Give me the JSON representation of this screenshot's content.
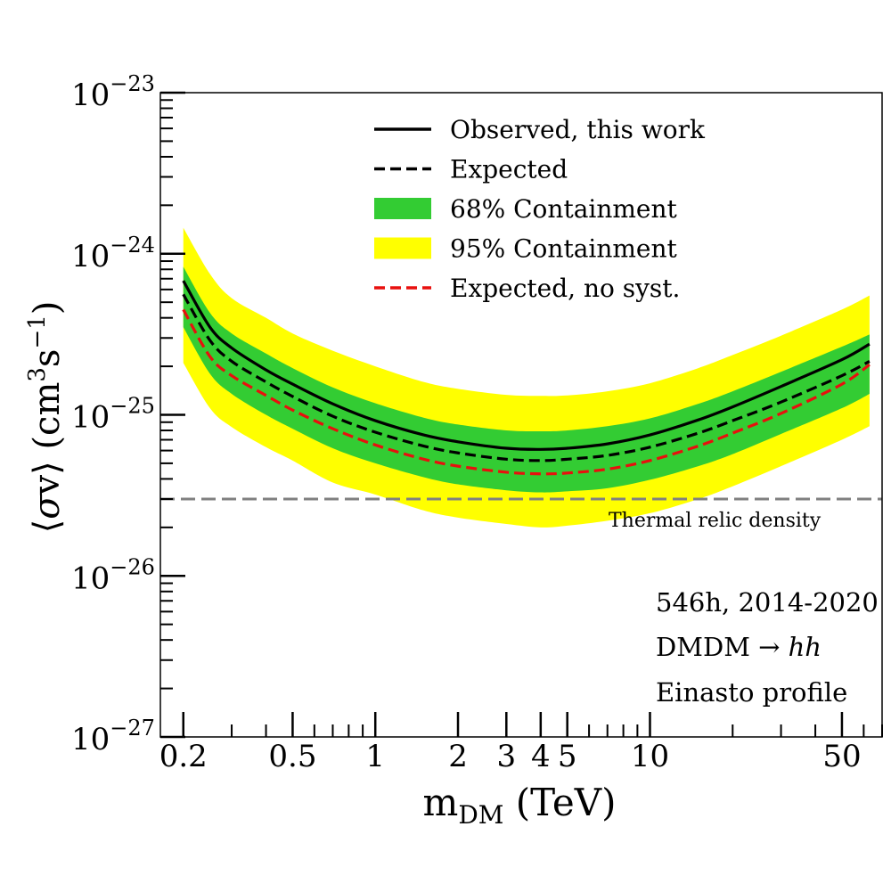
{
  "chart_data": {
    "type": "line",
    "xscale": "log",
    "yscale": "log",
    "xlim": [
      0.165,
      70
    ],
    "ylim": [
      1e-27,
      1e-23
    ],
    "xlabel": {
      "main": "m",
      "sub": "DM",
      "rest": " (TeV)"
    },
    "ylabel": {
      "open": "⟨",
      "sigma": "σ",
      "v": "v",
      "close": "⟩",
      "unit_open": " (cm",
      "exp3": "3",
      "s": "s",
      "expm1": "−1",
      "unit_close": ")"
    },
    "xticks": [
      {
        "value": 0.2,
        "label": "0.2"
      },
      {
        "value": 0.5,
        "label": "0.5"
      },
      {
        "value": 1,
        "label": "1"
      },
      {
        "value": 2,
        "label": "2"
      },
      {
        "value": 3,
        "label": "3"
      },
      {
        "value": 4,
        "label": "4"
      },
      {
        "value": 5,
        "label": "5"
      },
      {
        "value": 10,
        "label": "10"
      },
      {
        "value": 50,
        "label": "50"
      }
    ],
    "yticks": [
      {
        "value": 1e-23,
        "base": "10",
        "exp": "−23"
      },
      {
        "value": 1e-24,
        "base": "10",
        "exp": "−24"
      },
      {
        "value": 1e-25,
        "base": "10",
        "exp": "−25"
      },
      {
        "value": 1e-26,
        "base": "10",
        "exp": "−26"
      },
      {
        "value": 1e-27,
        "base": "10",
        "exp": "−27"
      }
    ],
    "x": [
      0.2,
      0.25,
      0.3,
      0.4,
      0.5,
      0.7,
      1,
      1.5,
      2,
      3,
      4,
      5,
      7,
      10,
      15,
      20,
      30,
      50,
      63
    ],
    "series": [
      {
        "name": "Observed, this work",
        "style": "solid",
        "color": "#000000",
        "values": [
          6.8e-25,
          3.5e-25,
          2.6e-25,
          1.9e-25,
          1.55e-25,
          1.17e-25,
          9.2e-26,
          7.5e-26,
          6.8e-26,
          6.2e-26,
          6.1e-26,
          6.2e-26,
          6.6e-26,
          7.5e-26,
          9.3e-26,
          1.12e-25,
          1.5e-25,
          2.2e-25,
          2.75e-25
        ]
      },
      {
        "name": "Expected",
        "style": "dashed",
        "color": "#000000",
        "values": [
          5.6e-25,
          2.9e-25,
          2.15e-25,
          1.6e-25,
          1.3e-25,
          9.8e-26,
          7.8e-26,
          6.4e-26,
          5.8e-26,
          5.3e-26,
          5.2e-26,
          5.3e-26,
          5.6e-26,
          6.3e-26,
          7.7e-26,
          9.2e-26,
          1.2e-25,
          1.75e-25,
          2.15e-25
        ]
      },
      {
        "name": "Expected, no syst.",
        "style": "dashed",
        "color": "#e8100e",
        "values": [
          4.5e-25,
          2.3e-25,
          1.75e-25,
          1.32e-25,
          1.07e-25,
          8.2e-26,
          6.5e-26,
          5.3e-26,
          4.8e-26,
          4.4e-26,
          4.3e-26,
          4.35e-26,
          4.6e-26,
          5.2e-26,
          6.4e-26,
          7.7e-26,
          1.02e-25,
          1.55e-25,
          2.05e-25
        ]
      }
    ],
    "bands": [
      {
        "name": "95% Containment",
        "color": "#ffff00",
        "lower": [
          2.1e-25,
          1.1e-25,
          8.4e-26,
          6.3e-26,
          5.2e-26,
          3.8e-26,
          3.2e-26,
          2.55e-26,
          2.3e-26,
          2.1e-26,
          2e-26,
          2.05e-26,
          2.2e-26,
          2.45e-26,
          3e-26,
          3.6e-26,
          4.8e-26,
          7e-26,
          8.5e-26
        ],
        "upper": [
          1.45e-24,
          7.5e-25,
          5.3e-25,
          4e-25,
          3.2e-25,
          2.5e-25,
          2e-25,
          1.6e-25,
          1.45e-25,
          1.33e-25,
          1.31e-25,
          1.32e-25,
          1.4e-25,
          1.57e-25,
          1.95e-25,
          2.35e-25,
          3.1e-25,
          4.5e-25,
          5.5e-25
        ]
      },
      {
        "name": "68% Containment",
        "color": "#33cc33",
        "lower": [
          3.5e-25,
          1.8e-25,
          1.35e-25,
          1e-25,
          8.2e-26,
          6.2e-26,
          5e-26,
          4.1e-26,
          3.7e-26,
          3.4e-26,
          3.3e-26,
          3.35e-26,
          3.5e-26,
          3.95e-26,
          4.8e-26,
          5.7e-26,
          7.6e-26,
          1.1e-25,
          1.35e-25
        ]
      },
      {
        "name": "68% Containment upper",
        "color": "#33cc33",
        "upper": [
          8.3e-25,
          4.3e-25,
          3.2e-25,
          2.4e-25,
          1.95e-25,
          1.48e-25,
          1.18e-25,
          9.6e-26,
          8.7e-26,
          8e-26,
          7.9e-26,
          8e-26,
          8.5e-26,
          9.5e-26,
          1.17e-25,
          1.4e-25,
          1.85e-25,
          2.65e-25,
          3.15e-25
        ]
      }
    ],
    "reference_line": {
      "label": "Thermal relic density",
      "value": 3e-26,
      "color": "#808080"
    },
    "legend": {
      "placement": "top-center",
      "entries": [
        {
          "label": "Observed, this work",
          "kind": "solid",
          "color": "#000000"
        },
        {
          "label": "Expected",
          "kind": "dashed",
          "color": "#000000"
        },
        {
          "label": "68% Containment",
          "kind": "patch",
          "color": "#33cc33"
        },
        {
          "label": "95% Containment",
          "kind": "patch",
          "color": "#ffff00"
        },
        {
          "label": "Expected, no syst.",
          "kind": "dashed",
          "color": "#e8100e"
        }
      ]
    },
    "annotations": {
      "line1": "546h, 2014-2020",
      "line2_prefix": "DMDM → ",
      "line2_italic": "hh",
      "line3": "Einasto profile"
    },
    "grid": false
  }
}
